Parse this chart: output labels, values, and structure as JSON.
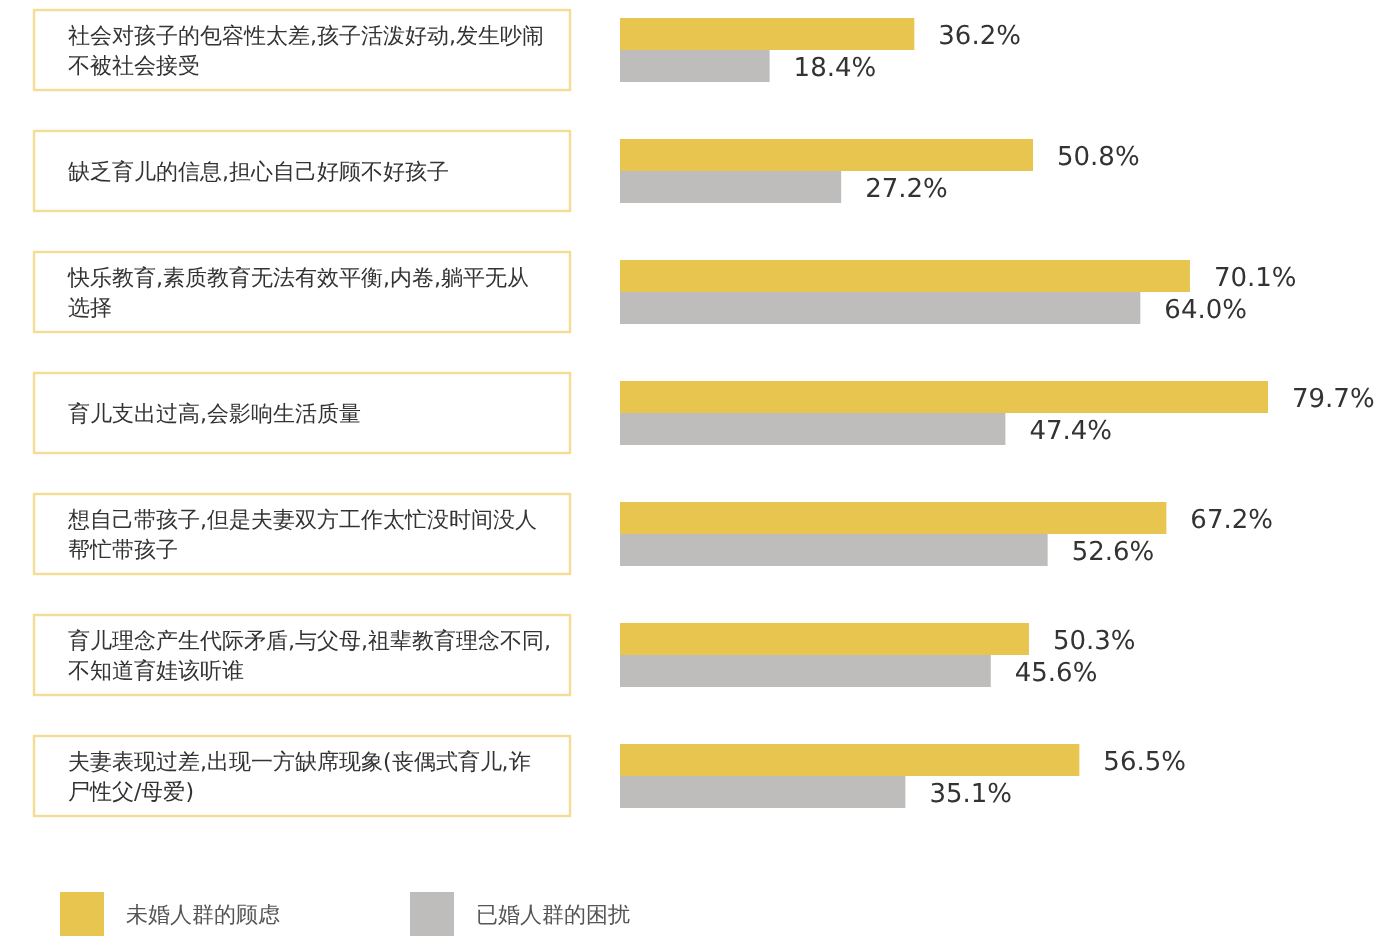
{
  "chart_data": {
    "type": "bar",
    "orientation": "horizontal",
    "categories": [
      "社会对孩子的包容性太差,孩子活泼好动,发生吵闹不被社会接受",
      "缺乏育儿的信息,担心自己好顾不好孩子",
      "快乐教育,素质教育无法有效平衡,内卷,躺平无从选择",
      "育儿支出过高,会影响生活质量",
      "想自己带孩子,但是夫妻双方工作太忙没时间没人帮忙带孩子",
      "育儿理念产生代际矛盾,与父母,祖辈教育理念不同,不知道育娃该听谁",
      "夫妻表现过差,出现一方缺席现象(丧偶式育儿,诈尸性父/母爱)"
    ],
    "series": [
      {
        "name": "未婚人群的顾虑",
        "color": "#e8c54e",
        "values": [
          36.2,
          50.8,
          70.1,
          79.7,
          67.2,
          50.3,
          56.5
        ],
        "value_labels": [
          "36.2%",
          "50.8%",
          "70.1%",
          "79.7%",
          "67.2%",
          "50.3%",
          "56.5%"
        ]
      },
      {
        "name": "已婚人群的困扰",
        "color": "#bfbdbb",
        "values": [
          18.4,
          27.2,
          64.0,
          47.4,
          52.6,
          45.6,
          35.1
        ],
        "value_labels": [
          "18.4%",
          "27.2%",
          "64.0%",
          "47.4%",
          "52.6%",
          "45.6%",
          "35.1%"
        ]
      }
    ],
    "legend": "bottom"
  }
}
